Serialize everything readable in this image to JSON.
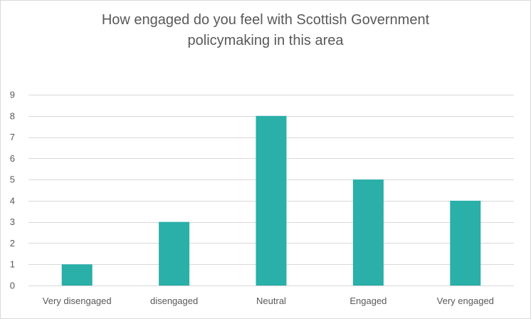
{
  "chart_data": {
    "type": "bar",
    "title_lines": [
      "How engaged do you feel with Scottish Government",
      "policymaking in this area"
    ],
    "categories": [
      "Very disengaged",
      "disengaged",
      "Neutral",
      "Engaged",
      "Very engaged"
    ],
    "values": [
      1,
      3,
      8,
      5,
      4
    ],
    "yticks": [
      "0",
      "1",
      "2",
      "3",
      "4",
      "5",
      "6",
      "7",
      "8",
      "9"
    ],
    "ylim": [
      0,
      9
    ],
    "grid": true,
    "legend": "none",
    "bar_color": "#2aafa9",
    "grid_color": "#d9d9d9"
  }
}
